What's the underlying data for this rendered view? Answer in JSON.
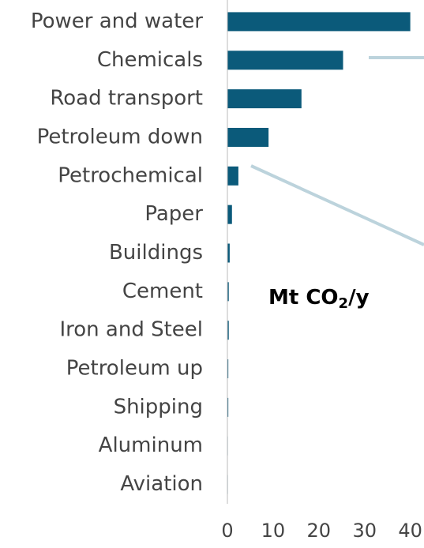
{
  "chart_data": {
    "type": "bar",
    "orientation": "horizontal",
    "categories": [
      "Power and water",
      "Chemicals",
      "Road transport",
      "Petroleum down",
      "Petrochemical",
      "Paper",
      "Buildings",
      "Cement",
      "Iron and Steel",
      "Petroleum up",
      "Shipping",
      "Aluminum",
      "Aviation"
    ],
    "values": [
      40,
      25.3,
      16.2,
      9,
      2.4,
      1,
      0.5,
      0.3,
      0.3,
      0.2,
      0.2,
      0.1,
      0.1
    ],
    "color": "#0b5a7a",
    "xlim": [
      0,
      43
    ],
    "xticks": [
      0,
      10,
      20,
      30,
      40
    ],
    "grid": false,
    "annotation": {
      "text": "Mt CO",
      "sub": "2",
      "suffix": "/y"
    }
  }
}
